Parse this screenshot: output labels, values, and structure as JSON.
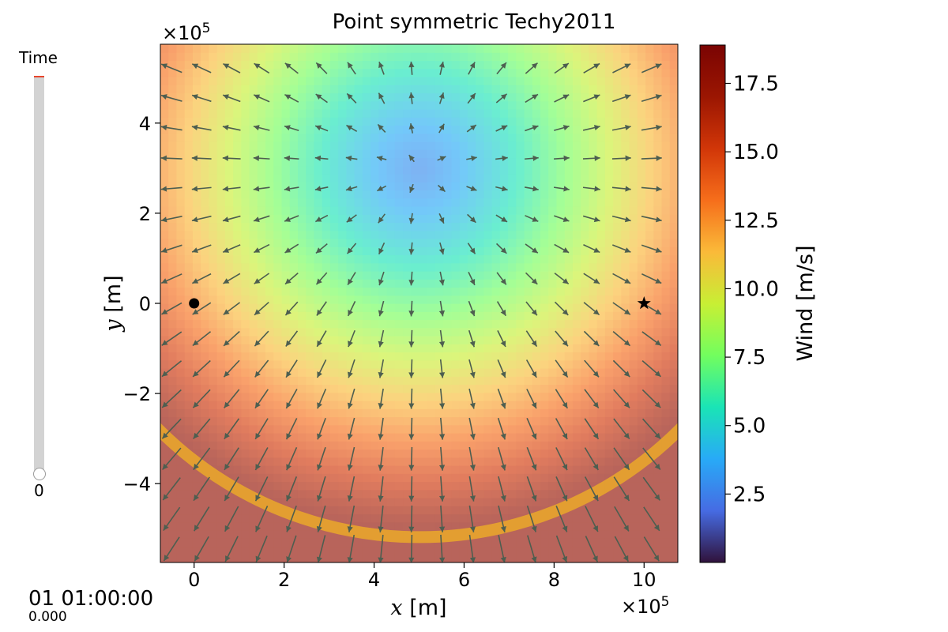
{
  "slider": {
    "label": "Time",
    "value": "0",
    "position_fraction": 0.0
  },
  "timestamp": {
    "main": "01 01:00:00",
    "sub": "0.000"
  },
  "chart_data": {
    "type": "heatmap",
    "title": "Point symmetric Techy2011",
    "xlabel_var": "x",
    "xlabel_unit": " [m]",
    "ylabel_var": "y",
    "ylabel_unit": " [m]",
    "x_offset_text": "×10",
    "x_offset_exp": "5",
    "y_offset_text": "×10",
    "y_offset_exp": "5",
    "xlim": [
      -0.75,
      10.75
    ],
    "ylim": [
      -5.75,
      5.75
    ],
    "xticks": [
      0,
      2,
      4,
      6,
      8,
      10
    ],
    "yticks": [
      -4,
      -2,
      0,
      2,
      4
    ],
    "xtick_labels": [
      "0",
      "2",
      "4",
      "6",
      "8",
      "10"
    ],
    "ytick_labels": [
      "−4",
      "−2",
      "0",
      "2",
      "4"
    ],
    "colorbar": {
      "label": "Wind [m/s]",
      "range": [
        0,
        18.9
      ],
      "ticks": [
        2.5,
        5.0,
        7.5,
        10.0,
        12.5,
        15.0,
        17.5
      ],
      "tick_labels": [
        "2.5",
        "5.0",
        "7.5",
        "10.0",
        "12.5",
        "15.0",
        "17.5"
      ],
      "colormap": "turbo"
    },
    "field": {
      "center": [
        5.0,
        3.0
      ],
      "min_speed": 2.8,
      "max_speed": 17.5,
      "peak_radius": 8.0,
      "arrow_spacing": 0.6667
    },
    "highlight_circle": {
      "center": [
        5.0,
        3.0
      ],
      "radius": 8.2,
      "color": "#eaa82a"
    },
    "markers": [
      {
        "name": "origin",
        "symbol": "circle",
        "x": 0,
        "y": 0
      },
      {
        "name": "target",
        "symbol": "star",
        "x": 10,
        "y": 0
      }
    ]
  }
}
